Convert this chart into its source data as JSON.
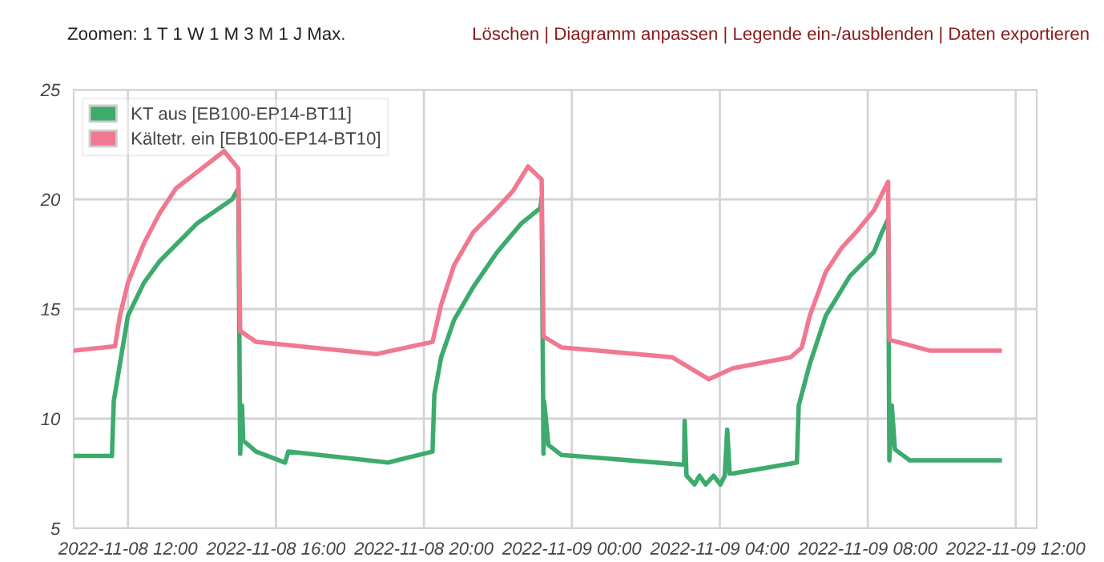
{
  "chart_data": {
    "type": "line",
    "annotations": [
      "Zoomen: 1 T 1 W 1 M 3 M 1 J Max.",
      "Löschen | Diagramm anpassen | Legende ein-/ausblenden | Daten exportieren"
    ],
    "xlim": [
      "2022-11-08T10:32",
      "2022-11-09T12:34"
    ],
    "ylim": [
      5,
      25
    ],
    "yticks": [
      5,
      10,
      15,
      20,
      25
    ],
    "xticks": [
      {
        "value": "2022-11-08T12:00",
        "label": "2022-11-08 12:00"
      },
      {
        "value": "2022-11-08T16:00",
        "label": "2022-11-08 16:00"
      },
      {
        "value": "2022-11-08T20:00",
        "label": "2022-11-08 20:00"
      },
      {
        "value": "2022-11-09T00:00",
        "label": "2022-11-09 00:00"
      },
      {
        "value": "2022-11-09T04:00",
        "label": "2022-11-09 04:00"
      },
      {
        "value": "2022-11-09T08:00",
        "label": "2022-11-09 08:00"
      },
      {
        "value": "2022-11-09T12:00",
        "label": "2022-11-09 12:00"
      }
    ],
    "grid": true,
    "legend": "top left",
    "marker": "none",
    "line_style": "solid",
    "series": [
      {
        "name": "KT aus [EB100-EP14-BT11]",
        "color": "#3daa6e",
        "x": [
          "2022-11-08T10:32",
          "2022-11-08T11:34",
          "2022-11-08T11:37",
          "2022-11-08T11:47",
          "2022-11-08T12:00",
          "2022-11-08T12:26",
          "2022-11-08T12:52",
          "2022-11-08T13:31",
          "2022-11-08T13:52",
          "2022-11-08T14:23",
          "2022-11-08T14:49",
          "2022-11-08T14:59",
          "2022-11-08T15:02",
          "2022-11-08T15:05",
          "2022-11-08T15:07",
          "2022-11-08T15:28",
          "2022-11-08T16:15",
          "2022-11-08T16:20",
          "2022-11-08T19:02",
          "2022-11-08T20:14",
          "2022-11-08T20:17",
          "2022-11-08T20:28",
          "2022-11-08T20:49",
          "2022-11-08T21:20",
          "2022-11-08T21:59",
          "2022-11-08T22:38",
          "2022-11-08T23:09",
          "2022-11-08T23:11",
          "2022-11-08T23:14",
          "2022-11-08T23:15",
          "2022-11-08T23:22",
          "2022-11-08T23:43",
          "2022-11-09T03:02",
          "2022-11-09T03:03",
          "2022-11-09T03:06",
          "2022-11-09T03:19",
          "2022-11-09T03:27",
          "2022-11-09T03:37",
          "2022-11-09T03:50",
          "2022-11-09T04:01",
          "2022-11-09T04:08",
          "2022-11-09T04:12",
          "2022-11-09T04:16",
          "2022-11-09T04:21",
          "2022-11-09T06:05",
          "2022-11-09T06:08",
          "2022-11-09T06:26",
          "2022-11-09T06:52",
          "2022-11-09T07:31",
          "2022-11-09T08:10",
          "2022-11-09T08:23",
          "2022-11-09T08:33",
          "2022-11-09T08:35",
          "2022-11-09T08:39",
          "2022-11-09T08:44",
          "2022-11-09T09:08",
          "2022-11-09T11:34"
        ],
        "values": [
          8.3,
          8.3,
          10.8,
          12.5,
          14.7,
          16.2,
          17.2,
          18.3,
          18.9,
          19.5,
          20.0,
          20.5,
          8.4,
          10.6,
          9.0,
          8.5,
          8.0,
          8.5,
          8.0,
          8.5,
          11.1,
          12.8,
          14.5,
          16.0,
          17.6,
          18.9,
          19.6,
          20.1,
          8.4,
          10.8,
          8.8,
          8.35,
          7.9,
          9.9,
          7.4,
          7.0,
          7.4,
          7.0,
          7.4,
          7.0,
          7.4,
          9.5,
          7.5,
          7.5,
          8.0,
          10.6,
          12.5,
          14.7,
          16.5,
          17.6,
          18.5,
          19.1,
          8.1,
          10.6,
          8.6,
          8.1,
          8.1
        ]
      },
      {
        "name": "Kältetr. ein [EB100-EP14-BT10]",
        "color": "#f07890",
        "x": [
          "2022-11-08T10:32",
          "2022-11-08T11:39",
          "2022-11-08T11:47",
          "2022-11-08T12:00",
          "2022-11-08T12:26",
          "2022-11-08T12:52",
          "2022-11-08T13:18",
          "2022-11-08T14:36",
          "2022-11-08T14:59",
          "2022-11-08T15:02",
          "2022-11-08T15:28",
          "2022-11-08T18:43",
          "2022-11-08T20:14",
          "2022-11-08T20:28",
          "2022-11-08T20:49",
          "2022-11-08T21:20",
          "2022-11-08T21:59",
          "2022-11-08T22:25",
          "2022-11-08T22:49",
          "2022-11-08T23:11",
          "2022-11-08T23:14",
          "2022-11-08T23:43",
          "2022-11-09T02:43",
          "2022-11-09T03:42",
          "2022-11-09T04:21",
          "2022-11-09T05:55",
          "2022-11-09T06:13",
          "2022-11-09T06:26",
          "2022-11-09T06:52",
          "2022-11-09T07:18",
          "2022-11-09T07:44",
          "2022-11-09T08:10",
          "2022-11-09T08:33",
          "2022-11-09T08:35",
          "2022-11-09T09:41",
          "2022-11-09T11:34"
        ],
        "values": [
          13.1,
          13.3,
          14.7,
          16.2,
          18.0,
          19.4,
          20.5,
          22.2,
          21.4,
          14.0,
          13.5,
          12.95,
          13.5,
          15.2,
          17.0,
          18.5,
          19.6,
          20.4,
          21.5,
          20.9,
          13.75,
          13.25,
          12.8,
          11.8,
          12.3,
          12.8,
          13.25,
          14.7,
          16.7,
          17.8,
          18.6,
          19.5,
          20.8,
          13.6,
          13.1,
          13.1
        ]
      }
    ]
  }
}
